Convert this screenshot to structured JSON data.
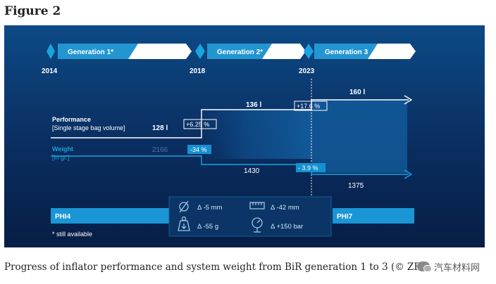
{
  "figure_title": "Figure 2",
  "caption": "Progress of inflator performance and system weight from BiR generation 1 to 3 (© ZF)",
  "watermark": "汽车材料网",
  "generations": [
    {
      "label": "Generation 1*",
      "year": "2014"
    },
    {
      "label": "Generation 2*",
      "year": "2018"
    },
    {
      "label": "Generation 3",
      "year": "2023"
    }
  ],
  "performance": {
    "label": "Performance",
    "sublabel": "[Single stage bag volume]",
    "values": [
      "128 l",
      "136 l",
      "160 l"
    ],
    "changes": [
      "+6.25 %",
      "+17.6 %"
    ]
  },
  "weight": {
    "label": "Weight",
    "sublabel": "[in gr.]",
    "values": [
      "2166",
      "1430",
      "1375"
    ],
    "changes": [
      "-34 %",
      "- 3.9 %"
    ]
  },
  "products": {
    "left": "PHI4",
    "right": "PHI7"
  },
  "footnote": "* still available",
  "deltas": [
    {
      "icon": "diameter-icon",
      "text": "Δ -5 mm"
    },
    {
      "icon": "ruler-icon",
      "text": "Δ -42 mm"
    },
    {
      "icon": "weight-icon",
      "text": "Δ -55 g"
    },
    {
      "icon": "pressure-gauge-icon",
      "text": "Δ +150 bar"
    }
  ],
  "colors": {
    "banner": "#1790d0",
    "banner_light": "#ffffff",
    "accent_cyan": "#1aa3e0",
    "phi_bar": "#1a95d5"
  }
}
